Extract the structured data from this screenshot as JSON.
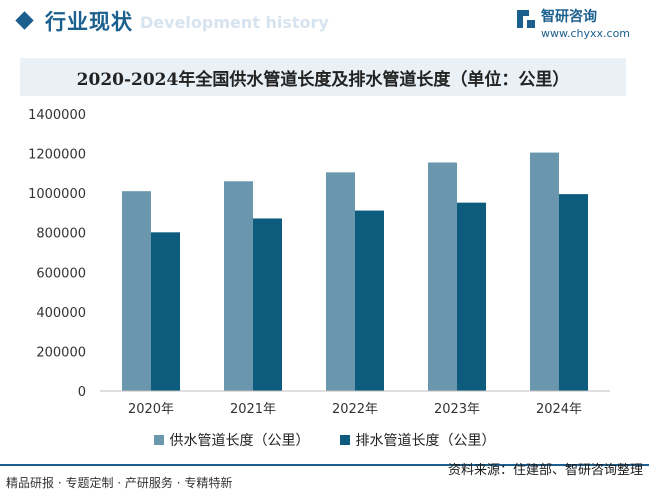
{
  "header": {
    "section_title": "行业现状",
    "section_subtitle": "Development history",
    "logo_name": "智研咨询",
    "logo_url": "www.chyxx.com"
  },
  "colors": {
    "accent": "#1b5f8e",
    "series_supply": "#6a97ad",
    "series_drain": "#0d5c7e",
    "title_bar": "#e9f0f6"
  },
  "chart_data": {
    "type": "bar",
    "title": "2020-2024年全国供水管道长度及排水管道长度（单位：公里）",
    "categories": [
      "2020年",
      "2021年",
      "2022年",
      "2023年",
      "2024年"
    ],
    "series": [
      {
        "name": "供水管道长度（公里）",
        "values": [
          1010000,
          1060000,
          1105000,
          1155000,
          1205000
        ]
      },
      {
        "name": "排水管道长度（公里）",
        "values": [
          802000,
          872000,
          912000,
          952000,
          995000
        ]
      }
    ],
    "yticks": [
      "1400000",
      "1200000",
      "1000000",
      "800000",
      "600000",
      "400000",
      "200000",
      "0"
    ],
    "ylim": [
      0,
      1400000
    ],
    "xlabel": "",
    "ylabel": "",
    "legend": "bottom"
  },
  "footer": {
    "tagline": "精品研报 · 专题定制 · 产研服务 · 专精特新",
    "source": "资料来源：住建部、智研咨询整理"
  }
}
